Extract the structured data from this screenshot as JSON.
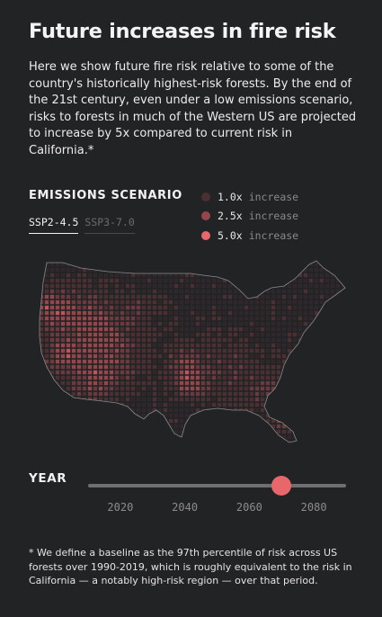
{
  "title": "Future increases in fire risk",
  "intro": "Here we show future fire risk relative to some of the country's historically highest-risk forests. By the end of the 21st century, even under a low emissions scenario, risks to forests in much of the Western US are projected to increase by 5x compared to current risk in California.*",
  "emissions": {
    "label": "EMISSIONS SCENARIO",
    "tabs": [
      {
        "label": "SSP2-4.5",
        "active": true
      },
      {
        "label": "SSP3-7.0",
        "active": false
      }
    ]
  },
  "legend": [
    {
      "value": "1.0x",
      "word": "increase",
      "color": "#4a3033"
    },
    {
      "value": "2.5x",
      "word": "increase",
      "color": "#93474b"
    },
    {
      "value": "5.0x",
      "word": "increase",
      "color": "#e8676b"
    }
  ],
  "map": {
    "region": "Contiguous United States",
    "outline_color": "#8a8a8a",
    "palette": [
      "#2f2729",
      "#4a3033",
      "#6b3a3e",
      "#93474b",
      "#bf555a",
      "#e8676b"
    ]
  },
  "year": {
    "label": "YEAR",
    "ticks": [
      "2020",
      "2040",
      "2060",
      "2080"
    ],
    "min": 2010,
    "max": 2090,
    "selected": 2070,
    "accent": "#e8676b"
  },
  "footnote": "* We define a baseline as the 97th percentile of risk across US forests over 1990-2019, which is roughly equivalent to the risk in California — a notably high-risk region — over that period."
}
